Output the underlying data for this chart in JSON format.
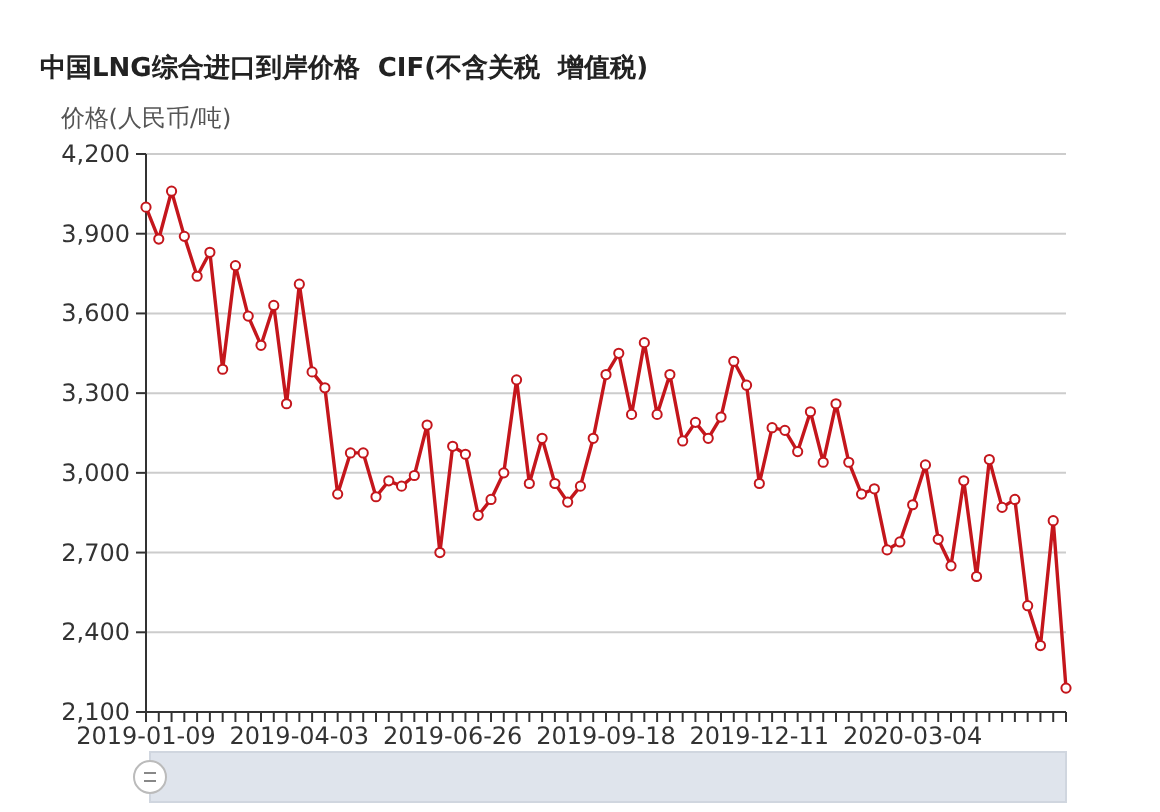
{
  "chart_data": {
    "type": "line",
    "title": "中国LNG综合进口到岸价格  CIF(不含关税  增值税)",
    "ylabel": "价格(人民币/吨)",
    "categories": [
      "2019-01-09",
      null,
      null,
      null,
      null,
      null,
      null,
      null,
      null,
      null,
      null,
      null,
      "2019-04-03",
      null,
      null,
      null,
      null,
      null,
      null,
      null,
      null,
      null,
      null,
      null,
      "2019-06-26",
      null,
      null,
      null,
      null,
      null,
      null,
      null,
      null,
      null,
      null,
      null,
      "2019-09-18",
      null,
      null,
      null,
      null,
      null,
      null,
      null,
      null,
      null,
      null,
      null,
      "2019-12-11",
      null,
      null,
      null,
      null,
      null,
      null,
      null,
      null,
      null,
      null,
      null,
      "2020-03-04",
      null,
      null,
      null,
      null,
      null,
      null,
      null,
      null,
      null,
      null,
      null,
      null
    ],
    "series": [
      {
        "color": "#c4161c",
        "values": [
          4000,
          3880,
          4060,
          3890,
          3740,
          3830,
          3390,
          3780,
          3590,
          3480,
          3630,
          3260,
          3710,
          3380,
          3320,
          2920,
          3075,
          3075,
          2910,
          2970,
          2950,
          2990,
          3180,
          2700,
          3100,
          3070,
          2840,
          2900,
          3000,
          3350,
          2960,
          3130,
          2960,
          2890,
          2950,
          3130,
          3370,
          3450,
          3220,
          3490,
          3220,
          3370,
          3120,
          3190,
          3130,
          3210,
          3420,
          3330,
          2960,
          3170,
          3160,
          3080,
          3230,
          3040,
          3260,
          3040,
          2920,
          2940,
          2710,
          2740,
          2880,
          3030,
          2750,
          2650,
          2970,
          2610,
          3050,
          2870,
          2900,
          2500,
          2350,
          2820,
          2190
        ]
      }
    ],
    "ylim": [
      2100,
      4200
    ],
    "yticks": [
      {
        "value": 2100,
        "label": "2,100"
      },
      {
        "value": 2400,
        "label": "2,400"
      },
      {
        "value": 2700,
        "label": "2,700"
      },
      {
        "value": 3000,
        "label": "3,000"
      },
      {
        "value": 3300,
        "label": "3,300"
      },
      {
        "value": 3600,
        "label": "3,600"
      },
      {
        "value": 3900,
        "label": "3,900"
      },
      {
        "value": 4200,
        "label": "4,200"
      }
    ],
    "grid": "y",
    "marker": "circle"
  }
}
